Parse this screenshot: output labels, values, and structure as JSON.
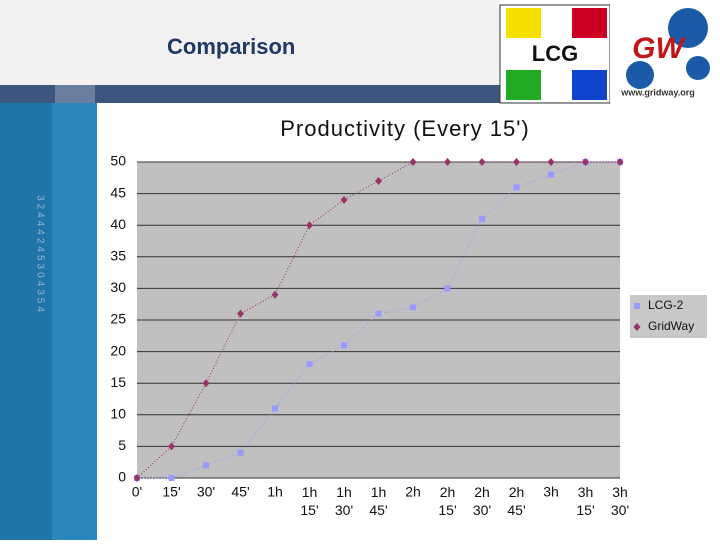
{
  "header": {
    "title": "Comparison",
    "logo_left": "LCG",
    "logo_right": "GW",
    "logo_url": "www.gridway.org"
  },
  "side_code": "32444245304354",
  "chart_data": {
    "type": "line",
    "title": "Productivity (Every 15')",
    "categories": [
      "0'",
      "15'",
      "30'",
      "45'",
      "1h",
      "1h 15'",
      "1h 30'",
      "1h 45'",
      "2h",
      "2h 15'",
      "2h 30'",
      "2h 45'",
      "3h",
      "3h 15'",
      "3h 30'"
    ],
    "series": [
      {
        "name": "LCG-2",
        "color": "#9999ff",
        "marker": "square",
        "values": [
          0,
          0,
          2,
          4,
          11,
          18,
          21,
          26,
          27,
          30,
          41,
          46,
          48,
          50,
          50
        ]
      },
      {
        "name": "GridWay",
        "color": "#993366",
        "marker": "diamond",
        "values": [
          0,
          5,
          15,
          26,
          29,
          40,
          44,
          47,
          50,
          50,
          50,
          50,
          50,
          50,
          50
        ]
      }
    ],
    "ylim": [
      0,
      50
    ],
    "yticks": [
      0,
      5,
      10,
      15,
      20,
      25,
      30,
      35,
      40,
      45,
      50
    ],
    "grid": true,
    "legend": "right"
  }
}
